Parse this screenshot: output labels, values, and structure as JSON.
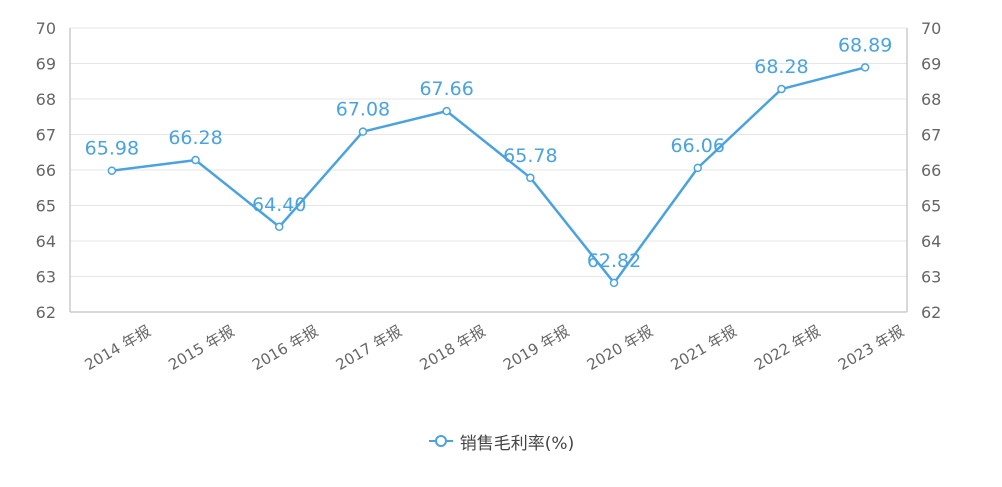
{
  "colors": {
    "line": "#4aa3df",
    "label": "#4aa3df",
    "grid": "#e6e6e6",
    "axis": "#cccccc"
  },
  "legend": {
    "label": "销售毛利率(%)",
    "icon": "circle-line-marker"
  },
  "chart_data": {
    "type": "line",
    "categories": [
      "2014 年报",
      "2015 年报",
      "2016 年报",
      "2017 年报",
      "2018 年报",
      "2019 年报",
      "2020 年报",
      "2021 年报",
      "2022 年报",
      "2023 年报"
    ],
    "series": [
      {
        "name": "销售毛利率(%)",
        "values": [
          65.98,
          66.28,
          64.4,
          67.08,
          67.66,
          65.78,
          62.82,
          66.06,
          68.28,
          68.89
        ]
      }
    ],
    "data_labels": [
      "65.98",
      "66.28",
      "64.40",
      "67.08",
      "67.66",
      "65.78",
      "62.82",
      "66.06",
      "68.28",
      "68.89"
    ],
    "yticks": [
      62,
      63,
      64,
      65,
      66,
      67,
      68,
      69,
      70
    ],
    "ylim": [
      62,
      70
    ],
    "grid": true,
    "dual_y_axis": true,
    "legend_position": "bottom-center"
  }
}
